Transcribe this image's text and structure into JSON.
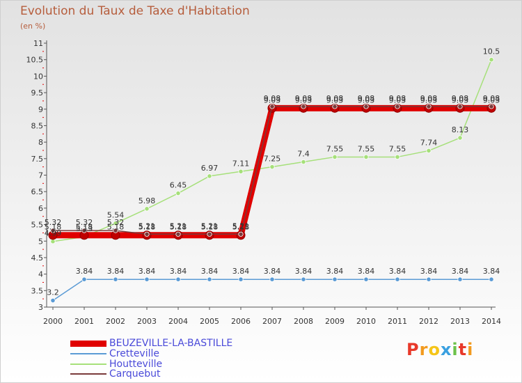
{
  "header": {
    "title": "Evolution du Taux de Taxe d'Habitation",
    "subtitle": "(en %)"
  },
  "chart_data": {
    "type": "line",
    "title": "Evolution du Taux de Taxe d'Habitation",
    "ylabel": "(en %)",
    "xlabel": "",
    "x": [
      "2000",
      "2001",
      "2002",
      "2003",
      "2004",
      "2005",
      "2006",
      "2007",
      "2008",
      "2009",
      "2010",
      "2011",
      "2012",
      "2013",
      "2014"
    ],
    "ylim": [
      3,
      11
    ],
    "yticks": [
      "3",
      "3.5",
      "4",
      "4.5",
      "5",
      "5.5",
      "6",
      "6.5",
      "7",
      "7.5",
      "8",
      "8.5",
      "9",
      "9.5",
      "10",
      "10.5",
      "11"
    ],
    "grid": false,
    "series": [
      {
        "name": "BEUZEVILLE-LA-BASTILLE",
        "color": "#e00000",
        "values": [
          5.18,
          5.18,
          5.18,
          5.18,
          5.18,
          5.18,
          5.18,
          9.03,
          9.03,
          9.03,
          9.03,
          9.03,
          9.03,
          9.03,
          9.03
        ],
        "labels": [
          "5.18",
          "5.18",
          "5.18",
          "5.18",
          "5.18",
          "5.18",
          "5.18",
          "9.03",
          "9.03",
          "9.03",
          "9.03",
          "9.03",
          "9.03",
          "9.03",
          "9.03"
        ]
      },
      {
        "name": "Cretteville",
        "color": "#5b9bd5",
        "values": [
          3.2,
          3.84,
          3.84,
          3.84,
          3.84,
          3.84,
          3.84,
          3.84,
          3.84,
          3.84,
          3.84,
          3.84,
          3.84,
          3.84,
          3.84
        ],
        "labels": [
          "3.2",
          "3.84",
          "3.84",
          "3.84",
          "3.84",
          "3.84",
          "3.84",
          "3.84",
          "3.84",
          "3.84",
          "3.84",
          "3.84",
          "3.84",
          "3.84",
          "3.84"
        ]
      },
      {
        "name": "Houtteville",
        "color": "#a6e07a",
        "values": [
          4.99,
          5.13,
          5.54,
          5.98,
          6.45,
          6.97,
          7.11,
          7.25,
          7.4,
          7.55,
          7.55,
          7.55,
          7.74,
          8.13,
          10.5
        ],
        "labels": [
          "4.99",
          "5.13",
          "5.54",
          "5.98",
          "6.45",
          "6.97",
          "7.11",
          "7.25",
          "7.4",
          "7.55",
          "7.55",
          "7.55",
          "7.74",
          "8.13",
          "10.5"
        ]
      },
      {
        "name": "Carquebut",
        "color": "#7a3b3b",
        "values": [
          5.32,
          5.32,
          5.32,
          5.21,
          5.21,
          5.21,
          5.21,
          9.08,
          9.08,
          9.08,
          9.08,
          9.08,
          9.08,
          9.08,
          9.08
        ],
        "labels": [
          "5.32",
          "5.32",
          "5.32",
          "5.21",
          "5.21",
          "5.21",
          "5.21",
          "9.08",
          "9.08",
          "9.08",
          "9.08",
          "9.08",
          "9.08",
          "9.08",
          "9.08"
        ]
      }
    ]
  },
  "branding": {
    "logo_letters": [
      "P",
      "r",
      "o",
      "x",
      "i",
      "t",
      "i"
    ],
    "logo_colors": [
      "#e8392a",
      "#f29a1e",
      "#f5c518",
      "#3aa0e0",
      "#6cc24a",
      "#e8392a",
      "#f29a1e"
    ]
  }
}
